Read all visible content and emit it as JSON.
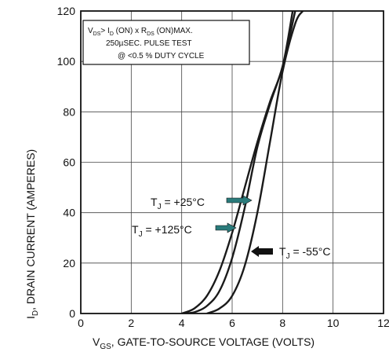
{
  "chart_data": {
    "type": "line",
    "x_axis": {
      "label_main": "V",
      "label_sub": "GS",
      "label_rest": ", GATE-TO-SOURCE VOLTAGE (VOLTS)",
      "range": [
        0,
        12
      ],
      "ticks": [
        "0",
        "2",
        "4",
        "6",
        "8",
        "10",
        "12"
      ]
    },
    "y_axis": {
      "label_main": "I",
      "label_sub": "D",
      "label_rest": ", DRAIN CURRENT (AMPERES)",
      "range": [
        0,
        120
      ],
      "ticks": [
        "0",
        "20",
        "40",
        "60",
        "80",
        "100",
        "120"
      ]
    },
    "grid": true,
    "conditions": {
      "line1": {
        "a": "V",
        "a_sub": "DS",
        "b": "> I",
        "b_sub": "D",
        "c": " (ON) x  R",
        "c_sub": "DS",
        "d": " (ON)MAX."
      },
      "line2": "250µSEC.  PULSE  TEST",
      "line3": "@  <0.5 %  DUTY  CYCLE"
    },
    "series": [
      {
        "name": "T_J = +25°C",
        "label_a": "T",
        "label_sub": "J",
        "label_b": " = +25°C",
        "color": "#1a1a1a",
        "x": [
          4.0,
          4.5,
          5.0,
          5.5,
          6.0,
          6.5,
          7.0,
          7.5,
          8.0,
          8.5
        ],
        "y": [
          0,
          0.5,
          3,
          9,
          22,
          42,
          66,
          83,
          98,
          120
        ]
      },
      {
        "name": "T_J = +125°C",
        "label_a": "T",
        "label_sub": "J",
        "label_b": " = +125°C",
        "color": "#1a1a1a",
        "x": [
          4.0,
          4.5,
          5.0,
          5.5,
          6.0,
          6.5,
          7.0,
          7.5,
          8.0,
          8.4
        ],
        "y": [
          0,
          2,
          7,
          17,
          32,
          50,
          68,
          84,
          98,
          120
        ]
      },
      {
        "name": "T_J = -55°C",
        "label_a": "T",
        "label_sub": "J",
        "label_b": " = -55°C",
        "color": "#1a1a1a",
        "x": [
          5.0,
          5.5,
          6.0,
          6.5,
          7.0,
          7.5,
          8.0,
          8.5,
          8.8
        ],
        "y": [
          0,
          2,
          7,
          19,
          40,
          68,
          96,
          115,
          120
        ]
      }
    ],
    "arrow_colors": {
      "teal": "#2a7b7b",
      "black": "#111111"
    }
  }
}
